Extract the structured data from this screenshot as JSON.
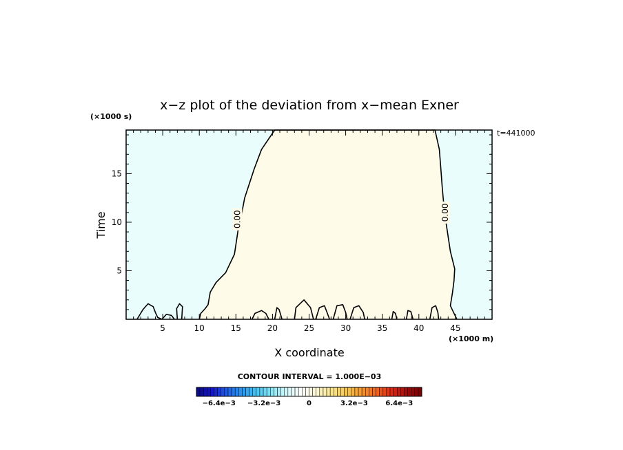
{
  "chart_data": {
    "type": "contour",
    "title": "x−z plot of the deviation from x−mean Exner",
    "xlabel": "X coordinate",
    "ylabel": "Time",
    "x_units": "(×1000 m)",
    "y_units": "(×1000 s)",
    "time_stamp": "t=441000",
    "xlim": [
      0,
      50
    ],
    "ylim": [
      0,
      19.5
    ],
    "x_ticks": [
      5,
      10,
      15,
      20,
      25,
      30,
      35,
      40,
      45
    ],
    "x_tick_labels": [
      "5",
      "10",
      "15",
      "20",
      "25",
      "30",
      "35",
      "40",
      "45"
    ],
    "y_ticks": [
      5,
      10,
      15
    ],
    "y_tick_labels": [
      "5",
      "10",
      "15"
    ],
    "grid": false,
    "background_level": "negative (light cyan)",
    "contours": [
      {
        "level": "0.00",
        "region_fill": "positive (light cream)",
        "points": [
          [
            10.0,
            0.0
          ],
          [
            10.2,
            0.6
          ],
          [
            10.8,
            1.1
          ],
          [
            11.2,
            1.5
          ],
          [
            11.5,
            2.8
          ],
          [
            12.3,
            3.8
          ],
          [
            13.6,
            4.8
          ],
          [
            14.8,
            6.7
          ],
          [
            15.3,
            9.2
          ],
          [
            15.7,
            10.5
          ],
          [
            16.2,
            12.5
          ],
          [
            17.5,
            15.5
          ],
          [
            18.5,
            17.5
          ],
          [
            20.3,
            19.5
          ],
          [
            42.2,
            19.5
          ],
          [
            42.8,
            17.5
          ],
          [
            43.0,
            15.5
          ],
          [
            43.2,
            13.5
          ],
          [
            43.5,
            11.0
          ],
          [
            44.0,
            8.5
          ],
          [
            44.3,
            7.0
          ],
          [
            44.9,
            5.2
          ],
          [
            44.8,
            4.0
          ],
          [
            44.6,
            2.8
          ],
          [
            44.3,
            1.4
          ],
          [
            45.0,
            0.3
          ],
          [
            45.2,
            0.0
          ]
        ],
        "labels": [
          {
            "text": "0.00",
            "x": 15.2,
            "y": 10.3
          },
          {
            "text": "0.00",
            "x": 43.6,
            "y": 11.0
          }
        ]
      },
      {
        "level": "0.00",
        "points": [
          [
            1.5,
            0.0
          ],
          [
            2.3,
            1.0
          ],
          [
            3.0,
            1.6
          ],
          [
            3.7,
            1.3
          ],
          [
            4.0,
            0.7
          ],
          [
            4.3,
            0.2
          ],
          [
            4.9,
            0.0
          ]
        ]
      },
      {
        "level": "0.00",
        "points": [
          [
            4.9,
            0.0
          ],
          [
            5.5,
            0.5
          ],
          [
            6.2,
            0.4
          ],
          [
            6.6,
            0.0
          ]
        ]
      },
      {
        "level": "0.00",
        "points": [
          [
            7.0,
            0.0
          ],
          [
            6.9,
            1.1
          ],
          [
            7.3,
            1.6
          ],
          [
            7.7,
            1.3
          ],
          [
            7.6,
            0.0
          ]
        ]
      },
      {
        "level": "0.00",
        "points": [
          [
            17.2,
            0.0
          ],
          [
            17.6,
            0.6
          ],
          [
            18.5,
            0.9
          ],
          [
            19.1,
            0.6
          ],
          [
            19.5,
            0.0
          ]
        ]
      },
      {
        "level": "0.00",
        "points": [
          [
            20.3,
            0.0
          ],
          [
            20.6,
            1.2
          ],
          [
            20.9,
            1.0
          ],
          [
            21.3,
            0.0
          ]
        ]
      },
      {
        "level": "0.00",
        "points": [
          [
            23.0,
            0.0
          ],
          [
            23.2,
            1.2
          ],
          [
            24.3,
            2.0
          ],
          [
            25.2,
            1.2
          ],
          [
            25.6,
            0.0
          ]
        ]
      },
      {
        "level": "0.00",
        "points": [
          [
            25.9,
            0.0
          ],
          [
            26.4,
            1.2
          ],
          [
            27.1,
            1.4
          ],
          [
            27.5,
            0.6
          ],
          [
            27.8,
            0.0
          ]
        ]
      },
      {
        "level": "0.00",
        "points": [
          [
            28.3,
            0.0
          ],
          [
            28.8,
            1.4
          ],
          [
            29.6,
            1.5
          ],
          [
            30.0,
            0.7
          ],
          [
            30.2,
            0.0
          ]
        ]
      },
      {
        "level": "0.00",
        "points": [
          [
            30.6,
            0.0
          ],
          [
            31.1,
            1.2
          ],
          [
            31.8,
            1.4
          ],
          [
            32.4,
            0.7
          ],
          [
            32.6,
            0.0
          ]
        ]
      },
      {
        "level": "0.00",
        "points": [
          [
            36.3,
            0.0
          ],
          [
            36.5,
            0.8
          ],
          [
            36.8,
            0.6
          ],
          [
            37.0,
            0.0
          ]
        ]
      },
      {
        "level": "0.00",
        "points": [
          [
            38.3,
            0.0
          ],
          [
            38.5,
            0.9
          ],
          [
            38.9,
            0.8
          ],
          [
            39.2,
            0.0
          ]
        ]
      },
      {
        "level": "0.00",
        "points": [
          [
            41.5,
            0.0
          ],
          [
            41.8,
            1.2
          ],
          [
            42.3,
            1.4
          ],
          [
            42.6,
            0.7
          ],
          [
            42.7,
            0.0
          ]
        ]
      }
    ]
  },
  "colorbar": {
    "title": "CONTOUR INTERVAL = 1.000E−03",
    "range": [
      -0.008,
      0.008
    ],
    "tick_values": [
      -0.0064,
      -0.0032,
      0,
      0.0032,
      0.0064
    ],
    "tick_labels": [
      "−6.4e−3",
      "−3.2e−3",
      "0",
      "3.2e−3",
      "6.4e−3"
    ],
    "color_stops": [
      "#0a0a82",
      "#1414c8",
      "#1e5ae6",
      "#2896f0",
      "#46c3f5",
      "#87e6f5",
      "#d2f8fa",
      "#ffffff",
      "#fdf6d2",
      "#fae68c",
      "#f8c850",
      "#f5962d",
      "#f0641e",
      "#dc2814",
      "#a00a0a",
      "#780000"
    ]
  },
  "colors": {
    "negative_fill": "#e9fdfd",
    "positive_fill": "#fefbe9",
    "contour_line": "#000000"
  }
}
